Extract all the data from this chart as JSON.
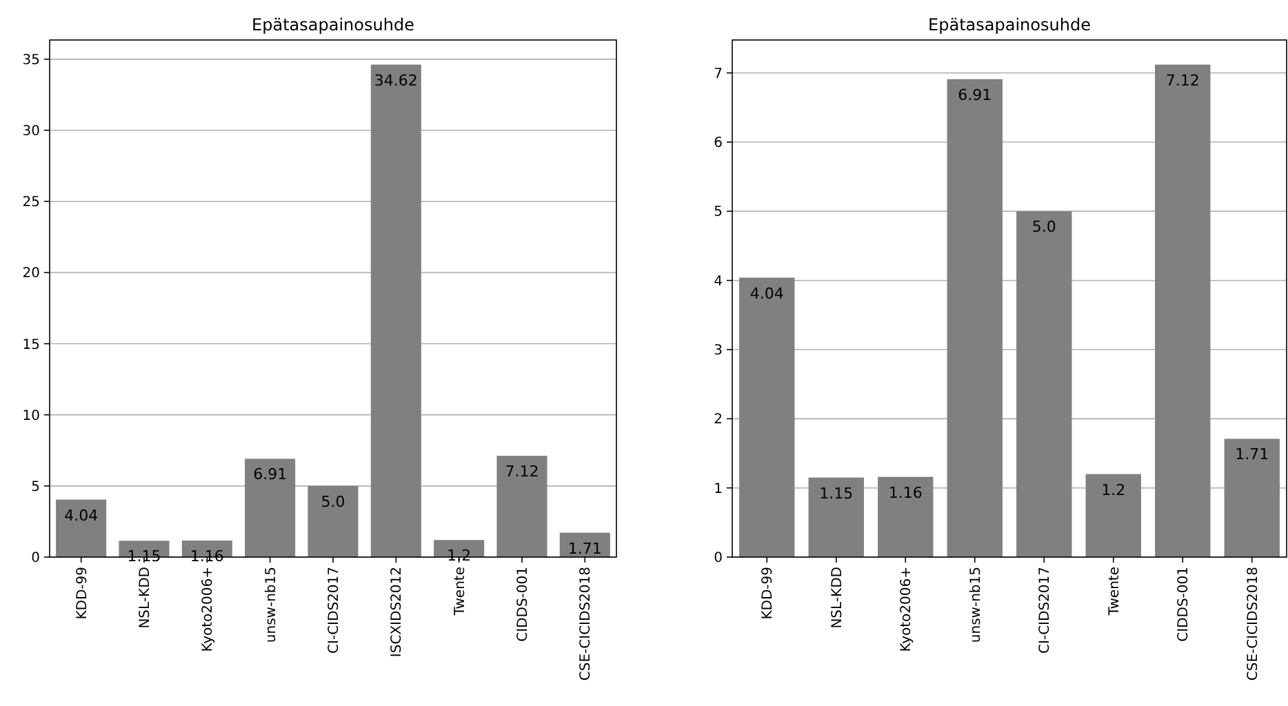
{
  "chart_data": [
    {
      "type": "bar",
      "title": "Epätasapainosuhde",
      "categories": [
        "KDD-99",
        "NSL-KDD",
        "Kyoto2006+",
        "unsw-nb15",
        "CI-CIDS2017",
        "ISCXIDS2012",
        "Twente",
        "CIDDS-001",
        "CSE-CICIDS2018"
      ],
      "values": [
        4.04,
        1.15,
        1.16,
        6.91,
        5.0,
        34.62,
        1.2,
        7.12,
        1.71
      ],
      "value_labels": [
        "4.04",
        "1.15",
        "1.16",
        "6.91",
        "5.0",
        "34.62",
        "1.2",
        "7.12",
        "1.71"
      ],
      "color": "#808080",
      "ylim": [
        0,
        36.35
      ],
      "yticks": [
        0,
        5,
        10,
        15,
        20,
        25,
        30,
        35
      ],
      "grid": "y"
    },
    {
      "type": "bar",
      "title": "Epätasapainosuhde",
      "categories": [
        "KDD-99",
        "NSL-KDD",
        "Kyoto2006+",
        "unsw-nb15",
        "CI-CIDS2017",
        "Twente",
        "CIDDS-001",
        "CSE-CICIDS2018"
      ],
      "values": [
        4.04,
        1.15,
        1.16,
        6.91,
        5.0,
        1.2,
        7.12,
        1.71
      ],
      "value_labels": [
        "4.04",
        "1.15",
        "1.16",
        "6.91",
        "5.0",
        "1.2",
        "7.12",
        "1.71"
      ],
      "color": "#808080",
      "ylim": [
        0,
        7.476
      ],
      "yticks": [
        0,
        1,
        2,
        3,
        4,
        5,
        6,
        7
      ],
      "grid": "y"
    }
  ]
}
